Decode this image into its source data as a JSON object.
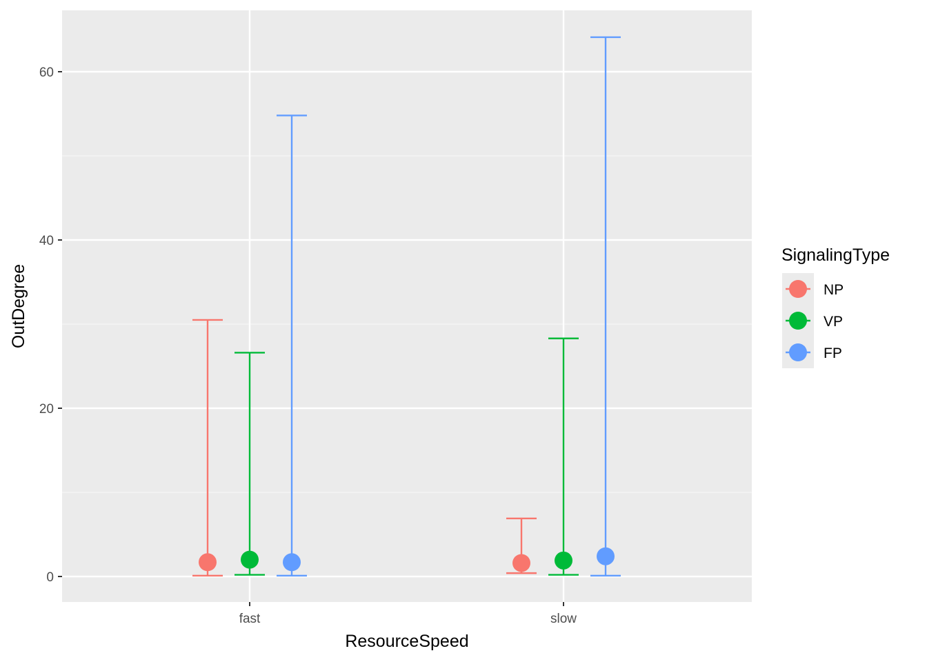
{
  "chart_data": {
    "type": "errorbar-point",
    "xlabel": "ResourceSpeed",
    "ylabel": "OutDegree",
    "categories": [
      "fast",
      "slow"
    ],
    "ylim": [
      -3,
      67
    ],
    "yticks": [
      0,
      20,
      40,
      60
    ],
    "grid": true,
    "legend": {
      "title": "SignalingType",
      "placement": "right",
      "entries": [
        "NP",
        "VP",
        "FP"
      ]
    },
    "series": [
      {
        "name": "NP",
        "color": "#F8766D",
        "points": [
          {
            "category": "fast",
            "y": 1.7,
            "ymin": 0.1,
            "ymax": 30.5
          },
          {
            "category": "slow",
            "y": 1.6,
            "ymin": 0.4,
            "ymax": 6.9
          }
        ]
      },
      {
        "name": "VP",
        "color": "#00BA38",
        "points": [
          {
            "category": "fast",
            "y": 2.0,
            "ymin": 0.2,
            "ymax": 26.6
          },
          {
            "category": "slow",
            "y": 1.9,
            "ymin": 0.2,
            "ymax": 28.3
          }
        ]
      },
      {
        "name": "FP",
        "color": "#619CFF",
        "points": [
          {
            "category": "fast",
            "y": 1.7,
            "ymin": 0.1,
            "ymax": 54.8
          },
          {
            "category": "slow",
            "y": 2.4,
            "ymin": 0.1,
            "ymax": 64.1
          }
        ]
      }
    ]
  }
}
